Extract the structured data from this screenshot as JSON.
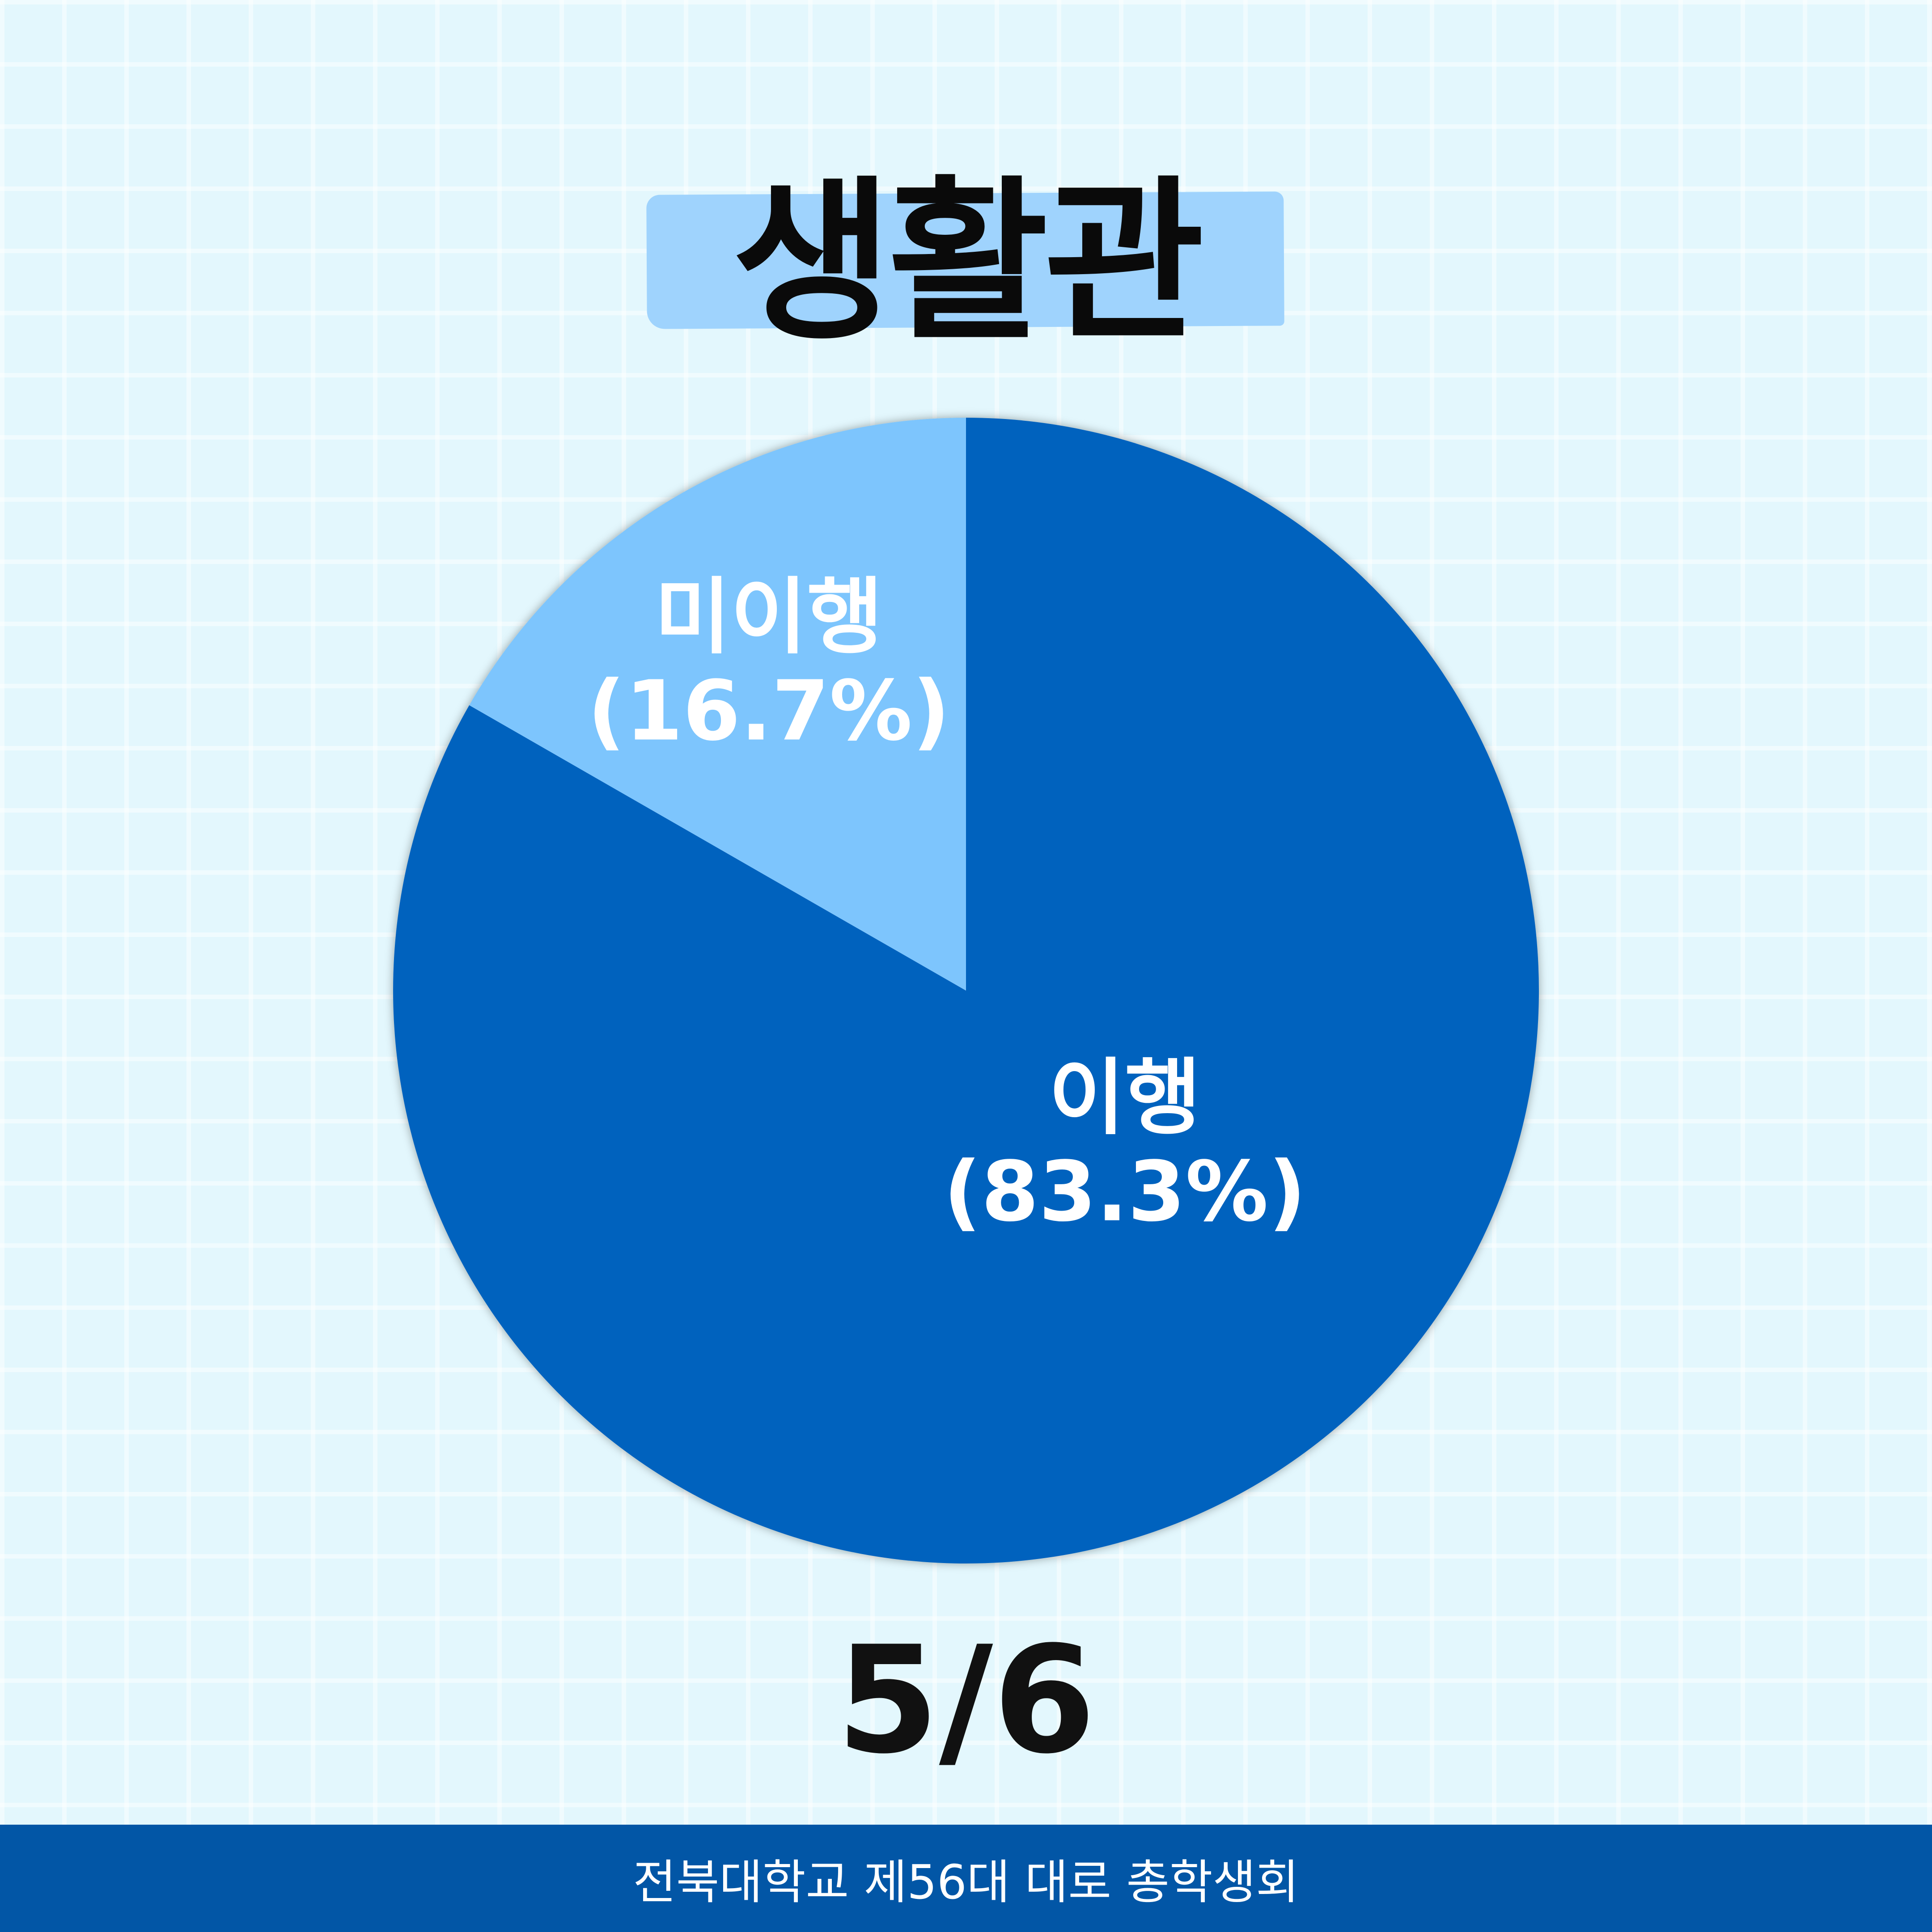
{
  "title": "생활관",
  "page_indicator": "5/6",
  "footer": "전북대학교 제56대 대로 총학생회",
  "chart_data": {
    "type": "pie",
    "start_angle": "12 o'clock, clockwise",
    "slices": [
      {
        "label": "이행",
        "value": 83.3,
        "value_label": "(83.3%)",
        "color": "#0062be"
      },
      {
        "label": "미이행",
        "value": 16.7,
        "value_label": "(16.7%)",
        "color": "#7dc5fd"
      }
    ]
  }
}
